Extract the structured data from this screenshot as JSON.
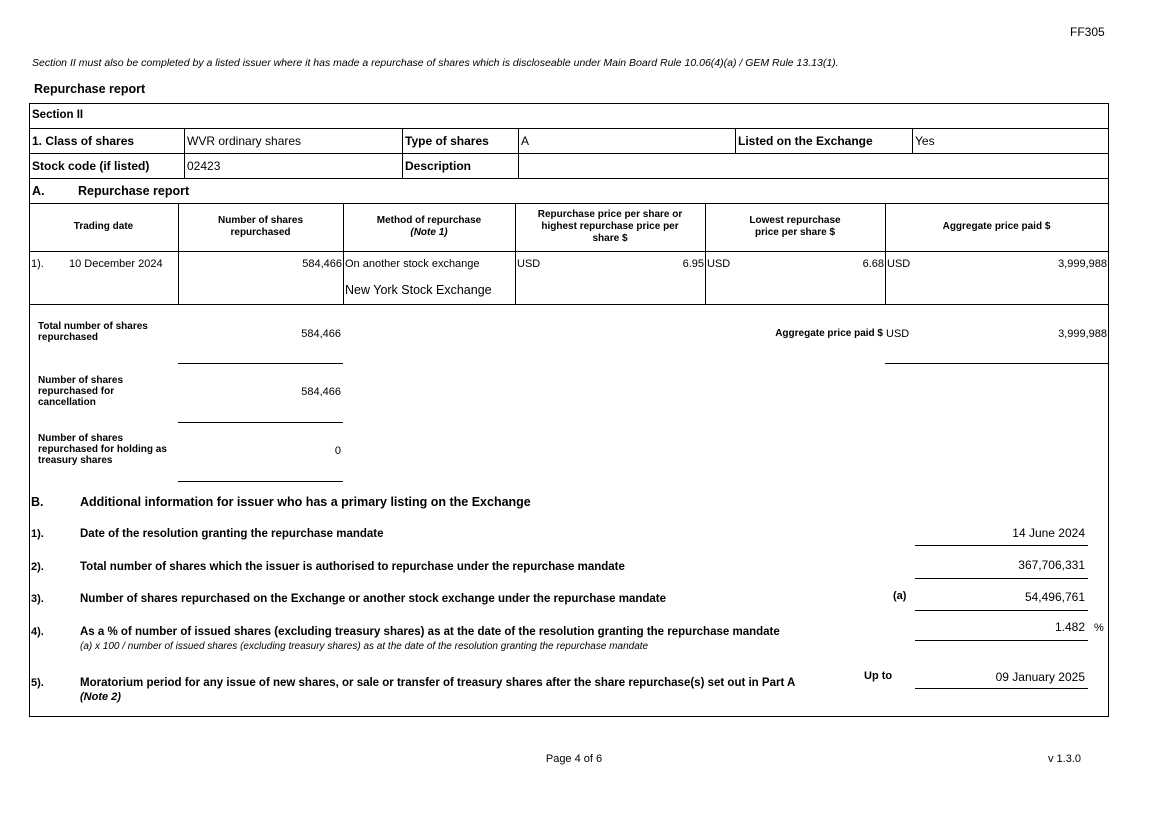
{
  "form_code": "FF305",
  "note": "Section II must also be completed by a listed issuer where it has made a repurchase of shares which is discloseable under Main Board Rule 10.06(4)(a) / GEM Rule 13.13(1).",
  "report_title": "Repurchase report",
  "section": "Section II",
  "info": {
    "class_label": "1. Class of shares",
    "class_value": "WVR ordinary shares",
    "type_label": "Type of shares",
    "type_value": "A",
    "listed_label": "Listed on the Exchange",
    "listed_value": "Yes",
    "code_label": "Stock code (if listed)",
    "code_value": "02423",
    "desc_label": "Description",
    "desc_value": ""
  },
  "part_a": {
    "letter": "A.",
    "title": "Repurchase report",
    "headers": [
      "Trading date",
      "Number of shares repurchased",
      "Method of repurchase",
      "(Note 1)",
      "Repurchase price per share or highest repurchase price per share $",
      "Lowest repurchase price per share $",
      "Aggregate price paid $"
    ],
    "rows": [
      {
        "no": "1).",
        "date": "10 December 2024",
        "shares": "584,466",
        "method": "On another stock exchange",
        "exchange": "New York Stock Exchange",
        "high_cur": "USD",
        "high": "6.95",
        "low_cur": "USD",
        "low": "6.68",
        "agg_cur": "USD",
        "agg": "3,999,988"
      }
    ],
    "total_label": "Total number of shares repurchased",
    "total": "584,466",
    "agg_label": "Aggregate price paid $",
    "agg_cur": "USD",
    "agg_total": "3,999,988",
    "cancel_label": "Number of shares repurchased for cancellation",
    "cancel": "584,466",
    "treasury_label": "Number of shares repurchased for holding as treasury shares",
    "treasury": "0"
  },
  "part_b": {
    "letter": "B.",
    "title": "Additional information for issuer who has a primary listing on the Exchange",
    "items": [
      {
        "no": "1).",
        "text": "Date of the resolution granting the repurchase mandate",
        "tag": "",
        "value": "14 June 2024",
        "unit": ""
      },
      {
        "no": "2).",
        "text": "Total number of shares which the issuer is authorised to repurchase under the repurchase mandate",
        "tag": "",
        "value": "367,706,331",
        "unit": ""
      },
      {
        "no": "3).",
        "text": "Number of shares repurchased on the Exchange or another stock exchange under the repurchase mandate",
        "tag": "(a)",
        "value": "54,496,761",
        "unit": ""
      },
      {
        "no": "4).",
        "text": "As a % of number of issued shares (excluding treasury shares) as at the date of the resolution granting the repurchase mandate",
        "sub": "(a) x 100 / number of issued shares (excluding treasury shares) as at the date of the resolution granting the repurchase mandate",
        "tag": "",
        "value": "1.482",
        "unit": "%"
      },
      {
        "no": "5).",
        "text": "Moratorium period for any issue of new shares, or sale or transfer of treasury shares after the share repurchase(s) set out in Part A",
        "sub": "(Note 2)",
        "tag": "Up to",
        "value": "09 January 2025",
        "unit": ""
      }
    ]
  },
  "footer": {
    "page": "Page 4 of 6",
    "version": "v 1.3.0"
  }
}
